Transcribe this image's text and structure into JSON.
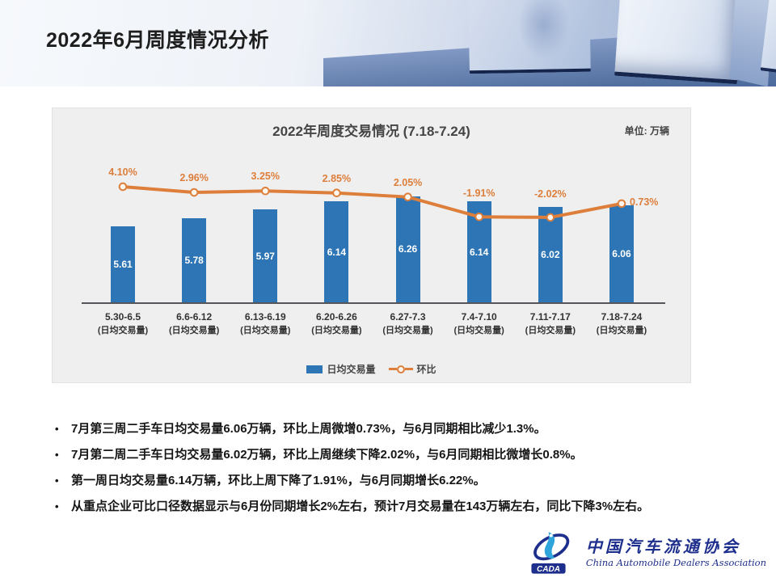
{
  "slide": {
    "title": "2022年6月周度情况分析"
  },
  "chart": {
    "unit_label": "单位: 万辆"
  },
  "chart_data": {
    "type": "bar",
    "title": "2022年周度交易情况 (7.18-7.24)",
    "unit": "万辆",
    "categories": [
      "5.30-6.5",
      "6.6-6.12",
      "6.13-6.19",
      "6.20-6.26",
      "6.27-7.3",
      "7.4-7.10",
      "7.11-7.17",
      "7.18-7.24"
    ],
    "category_sublabel": "(日均交易量)",
    "series": [
      {
        "name": "日均交易量",
        "type": "bar",
        "values": [
          5.61,
          5.78,
          5.97,
          6.14,
          6.26,
          6.14,
          6.02,
          6.06
        ],
        "color": "#2E75B6"
      },
      {
        "name": "环比",
        "type": "line",
        "values": [
          4.1,
          2.96,
          3.25,
          2.85,
          2.05,
          -1.91,
          -2.02,
          0.73
        ],
        "labels": [
          "4.10%",
          "2.96%",
          "3.25%",
          "2.85%",
          "2.05%",
          "-1.91%",
          "-2.02%",
          "0.73%"
        ],
        "color": "#DD7E3B"
      }
    ],
    "legend_position": "bottom",
    "grid": false,
    "bar_axis_starts_at_zero": false
  },
  "bullets": [
    "7月第三周二手车日均交易量6.06万辆，环比上周微增0.73%，与6月同期相比减少1.3%。",
    "7月第二周二手车日均交易量6.02万辆，环比上周继续下降2.02%，与6月同期相比微增长0.8%。",
    "第一周日均交易量6.14万辆，环比上周下降了1.91%，与6月同期增长6.22%。",
    "从重点企业可比口径数据显示与6月份同期增长2%左右，预计7月交易量在143万辆左右，同比下降3%左右。"
  ],
  "logo": {
    "abbr": "CADA",
    "org_cn": "中国汽车流通协会",
    "org_en": "China Automobile Dealers Association"
  }
}
